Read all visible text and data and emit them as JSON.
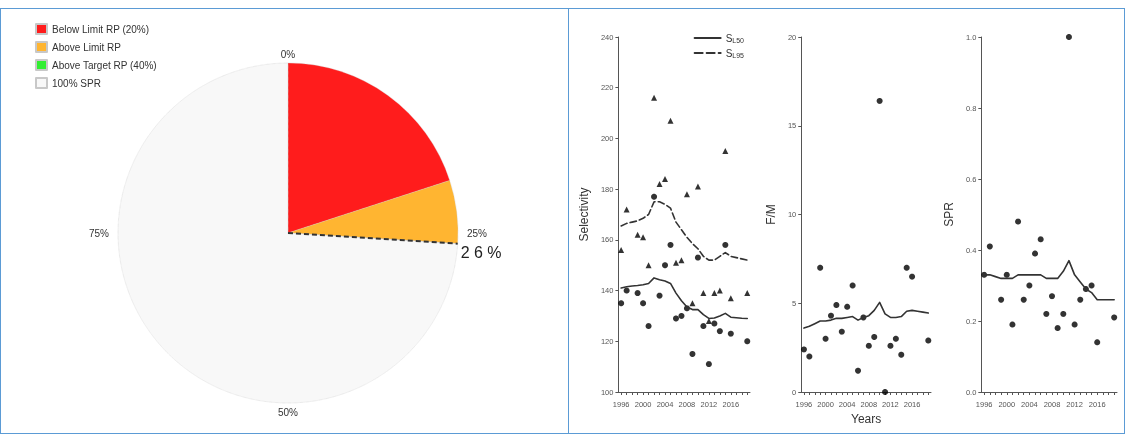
{
  "chart_data": [
    {
      "type": "pie",
      "categories": [
        "Below Limit RP (20%)",
        "Above Limit RP",
        "Above Target RP (40%)",
        "100% SPR"
      ],
      "values": [
        20,
        6,
        0,
        74
      ],
      "colors": [
        "#ff1c1c",
        "#ffb531",
        "#33ee33",
        "#f8f8f8"
      ],
      "legend": "top left",
      "needle": "100% SPR",
      "annotations": [
        "0%",
        "25%",
        "50%",
        "75%",
        "2 6 %"
      ]
    },
    {
      "type": "line",
      "ylabel": "Selectivity",
      "xlim": [
        1995.5,
        2019.5
      ],
      "ylim": [
        100,
        240
      ],
      "yticks": [
        100,
        120,
        140,
        160,
        180,
        200,
        220,
        240
      ],
      "xticks": [
        1996,
        {
          "value": 1997,
          "label": null
        },
        {
          "value": 1998,
          "label": null
        },
        {
          "value": 1999,
          "label": null
        },
        2000,
        {
          "value": 2001,
          "label": null
        },
        {
          "value": 2002,
          "label": null
        },
        {
          "value": 2003,
          "label": null
        },
        2004,
        {
          "value": 2005,
          "label": null
        },
        {
          "value": 2006,
          "label": null
        },
        {
          "value": 2007,
          "label": null
        },
        2008,
        {
          "value": 2009,
          "label": null
        },
        {
          "value": 2010,
          "label": null
        },
        {
          "value": 2011,
          "label": null
        },
        2012,
        {
          "value": 2013,
          "label": null
        },
        {
          "value": 2014,
          "label": null
        },
        {
          "value": 2015,
          "label": null
        },
        2016,
        {
          "value": 2017,
          "label": null
        },
        {
          "value": 2018,
          "label": null
        },
        {
          "value": 2019,
          "label": null
        }
      ],
      "legend": "top right",
      "x": [
        1996,
        1997,
        1998,
        1999,
        2000,
        2001,
        2002,
        2003,
        2004,
        2005,
        2006,
        2007,
        2008,
        2009,
        2010,
        2011,
        2012,
        2013,
        2014,
        2015,
        2016,
        2017,
        2018,
        2019
      ],
      "series": [
        {
          "name": "S$_{L50}$",
          "type": "line",
          "color": "#333333",
          "line_style": "solid",
          "marker": "none",
          "values": [
            141,
            141.5,
            141.8,
            142,
            142.3,
            142.8,
            145,
            144.3,
            143.8,
            142.8,
            139,
            136,
            133.5,
            132.5,
            132.5,
            130.5,
            129,
            129.2,
            130,
            131,
            129.5,
            129.3,
            129.1,
            129
          ]
        },
        {
          "name": "S$_{L95}$",
          "type": "line",
          "color": "#333333",
          "line_style": "dashed",
          "marker": "none",
          "values": [
            165.5,
            166.5,
            167,
            167.5,
            168.5,
            170,
            175,
            175,
            174,
            172.5,
            167,
            164,
            161,
            158.5,
            156.5,
            153.5,
            152,
            152,
            153.5,
            155,
            153.5,
            153,
            152.5,
            152
          ]
        },
        {
          "type": "scatter",
          "color": "#000000",
          "marker": "circle",
          "x": [
            1996,
            1997,
            1999,
            2000,
            2001,
            2002,
            2003,
            2004,
            2005,
            2006,
            2007,
            2008,
            2009,
            2010,
            2011,
            2012,
            2013,
            2014,
            2015,
            2016,
            2019
          ],
          "values": [
            135,
            140,
            139,
            135,
            126,
            177,
            138,
            150,
            158,
            129,
            130,
            133,
            115,
            153,
            126,
            111,
            127,
            124,
            158,
            123,
            120
          ]
        },
        {
          "type": "scatter",
          "color": "#000000",
          "marker": "triangle",
          "x": [
            1996,
            1997,
            1999,
            2000,
            2001,
            2002,
            2003,
            2004,
            2005,
            2006,
            2007,
            2008,
            2009,
            2010,
            2011,
            2012,
            2013,
            2014,
            2015,
            2016,
            2019
          ],
          "values": [
            156,
            172,
            162,
            161,
            150,
            216,
            182,
            184,
            207,
            151,
            152,
            178,
            135,
            181,
            139,
            128,
            139,
            140,
            195,
            137,
            139
          ]
        }
      ]
    },
    {
      "type": "line",
      "ylabel": "F/M",
      "xlabel": "Years",
      "xlim": [
        1995.5,
        2019.5
      ],
      "ylim": [
        0,
        20
      ],
      "yticks": [
        0,
        5,
        10,
        15,
        20
      ],
      "xticks": [
        1996,
        {
          "value": 1997,
          "label": null
        },
        {
          "value": 1998,
          "label": null
        },
        {
          "value": 1999,
          "label": null
        },
        2000,
        {
          "value": 2001,
          "label": null
        },
        {
          "value": 2002,
          "label": null
        },
        {
          "value": 2003,
          "label": null
        },
        2004,
        {
          "value": 2005,
          "label": null
        },
        {
          "value": 2006,
          "label": null
        },
        {
          "value": 2007,
          "label": null
        },
        2008,
        {
          "value": 2009,
          "label": null
        },
        {
          "value": 2010,
          "label": null
        },
        {
          "value": 2011,
          "label": null
        },
        2012,
        {
          "value": 2013,
          "label": null
        },
        {
          "value": 2014,
          "label": null
        },
        {
          "value": 2015,
          "label": null
        },
        2016,
        {
          "value": 2017,
          "label": null
        },
        {
          "value": 2018,
          "label": null
        },
        {
          "value": 2019,
          "label": null
        }
      ],
      "x": [
        1996,
        1997,
        1998,
        1999,
        2000,
        2001,
        2002,
        2003,
        2004,
        2005,
        2006,
        2007,
        2008,
        2009,
        2010,
        2011,
        2012,
        2013,
        2014,
        2015,
        2016,
        2017,
        2018,
        2019
      ],
      "series": [
        {
          "type": "line",
          "color": "#333333",
          "line_style": "solid",
          "marker": "none",
          "values": [
            3.6,
            3.7,
            3.85,
            4,
            4,
            4.05,
            4.15,
            4.15,
            4.2,
            4.25,
            4.05,
            4.2,
            4.3,
            4.6,
            5.05,
            4.4,
            4.2,
            4.2,
            4.25,
            4.55,
            4.6,
            4.55,
            4.5,
            4.45
          ]
        },
        {
          "type": "scatter",
          "color": "#000000",
          "marker": "circle",
          "x": [
            1996,
            1997,
            1999,
            2000,
            2001,
            2002,
            2003,
            2004,
            2005,
            2006,
            2007,
            2008,
            2009,
            2010,
            2011,
            2012,
            2013,
            2014,
            2015,
            2016,
            2019
          ],
          "values": [
            2.4,
            2,
            7,
            3,
            4.3,
            4.9,
            3.4,
            4.8,
            6,
            1.2,
            4.2,
            2.6,
            3.1,
            16.4,
            0,
            2.6,
            3,
            2.1,
            7,
            6.5,
            2.9
          ]
        }
      ]
    },
    {
      "type": "line",
      "ylabel": "SPR",
      "xlim": [
        1995.5,
        2019.5
      ],
      "ylim": [
        0,
        1
      ],
      "yticks": [
        {
          "value": 0,
          "label": "0.0"
        },
        0.2,
        0.4,
        0.6,
        0.8,
        {
          "value": 1,
          "label": "1.0"
        }
      ],
      "xticks": [
        1996,
        {
          "value": 1997,
          "label": null
        },
        {
          "value": 1998,
          "label": null
        },
        {
          "value": 1999,
          "label": null
        },
        2000,
        {
          "value": 2001,
          "label": null
        },
        {
          "value": 2002,
          "label": null
        },
        {
          "value": 2003,
          "label": null
        },
        2004,
        {
          "value": 2005,
          "label": null
        },
        {
          "value": 2006,
          "label": null
        },
        {
          "value": 2007,
          "label": null
        },
        2008,
        {
          "value": 2009,
          "label": null
        },
        {
          "value": 2010,
          "label": null
        },
        {
          "value": 2011,
          "label": null
        },
        2012,
        {
          "value": 2013,
          "label": null
        },
        {
          "value": 2014,
          "label": null
        },
        {
          "value": 2015,
          "label": null
        },
        2016,
        {
          "value": 2017,
          "label": null
        },
        {
          "value": 2018,
          "label": null
        },
        {
          "value": 2019,
          "label": null
        }
      ],
      "x": [
        1996,
        1997,
        1998,
        1999,
        2000,
        2001,
        2002,
        2003,
        2004,
        2005,
        2006,
        2007,
        2008,
        2009,
        2010,
        2011,
        2012,
        2013,
        2014,
        2015,
        2016,
        2017,
        2018,
        2019
      ],
      "series": [
        {
          "type": "line",
          "color": "#333333",
          "line_style": "solid",
          "marker": "none",
          "values": [
            0.33,
            0.33,
            0.325,
            0.32,
            0.32,
            0.32,
            0.33,
            0.33,
            0.33,
            0.33,
            0.33,
            0.32,
            0.32,
            0.32,
            0.34,
            0.37,
            0.33,
            0.31,
            0.29,
            0.28,
            0.26,
            0.26,
            0.26,
            0.26
          ]
        },
        {
          "type": "scatter",
          "color": "#000000",
          "marker": "circle",
          "x": [
            1996,
            1997,
            1999,
            2000,
            2001,
            2002,
            2003,
            2004,
            2005,
            2006,
            2007,
            2008,
            2009,
            2010,
            2011,
            2012,
            2013,
            2014,
            2015,
            2016,
            2019
          ],
          "values": [
            0.33,
            0.41,
            0.26,
            0.33,
            0.19,
            0.48,
            0.26,
            0.3,
            0.39,
            0.43,
            0.22,
            0.27,
            0.18,
            0.22,
            1,
            0.19,
            0.26,
            0.29,
            0.3,
            0.14,
            0.21
          ]
        }
      ]
    }
  ]
}
